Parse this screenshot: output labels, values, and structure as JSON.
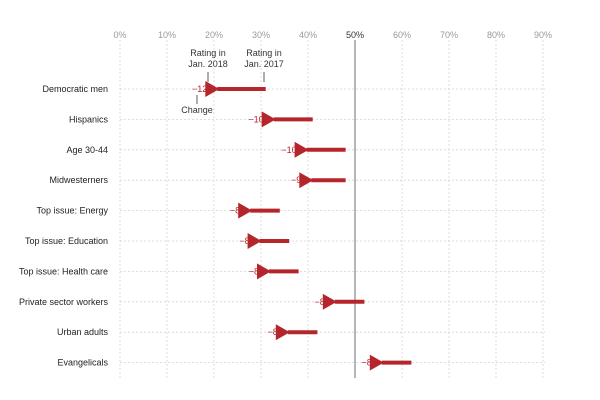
{
  "chart_data": {
    "type": "arrow",
    "x_ticks": [
      "0%",
      "10%",
      "20%",
      "30%",
      "40%",
      "50%",
      "60%",
      "70%",
      "80%",
      "90%"
    ],
    "x_tick_values": [
      0,
      10,
      20,
      30,
      40,
      50,
      60,
      70,
      80,
      90
    ],
    "xlim": [
      0,
      90
    ],
    "reference_line": 50,
    "annotations": {
      "rating_2018": "Rating in Jan. 2018",
      "rating_2017": "Rating in Jan. 2017",
      "change": "Change"
    },
    "series": [
      {
        "category": "Democratic men",
        "rating_2017": 31,
        "rating_2018": 19,
        "change_label": "−12"
      },
      {
        "category": "Hispanics",
        "rating_2017": 41,
        "rating_2018": 31,
        "change_label": "−10"
      },
      {
        "category": "Age 30-44",
        "rating_2017": 48,
        "rating_2018": 38,
        "change_label": "−10"
      },
      {
        "category": "Midwesterners",
        "rating_2017": 48,
        "rating_2018": 39,
        "change_label": "−9"
      },
      {
        "category": "Top issue: Energy",
        "rating_2017": 34,
        "rating_2018": 26,
        "change_label": "−8"
      },
      {
        "category": "Top issue: Education",
        "rating_2017": 36,
        "rating_2018": 28,
        "change_label": "−8"
      },
      {
        "category": "Top issue: Health care",
        "rating_2017": 38,
        "rating_2018": 30,
        "change_label": "−8"
      },
      {
        "category": "Private sector workers",
        "rating_2017": 52,
        "rating_2018": 44,
        "change_label": "−8"
      },
      {
        "category": "Urban adults",
        "rating_2017": 42,
        "rating_2018": 34,
        "change_label": "−8"
      },
      {
        "category": "Evangelicals",
        "rating_2017": 62,
        "rating_2018": 54,
        "change_label": "−8"
      }
    ],
    "colors": {
      "arrow": "#b5262c",
      "grid": "#d4d4d4",
      "reference": "#6e6e6e"
    }
  }
}
